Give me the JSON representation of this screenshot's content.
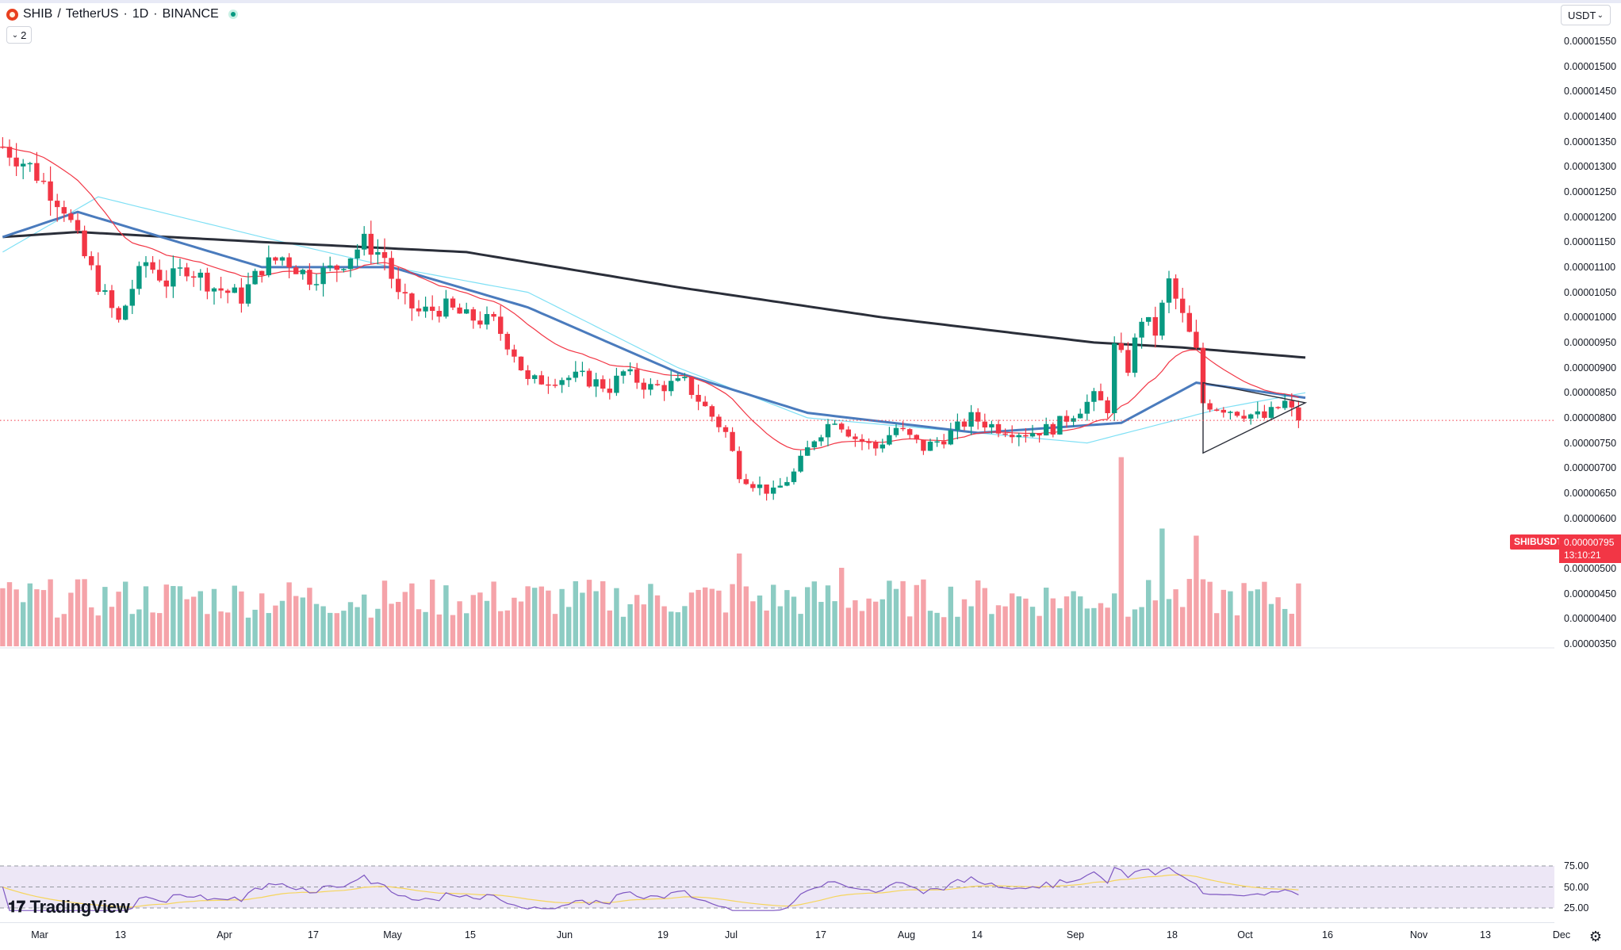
{
  "header": {
    "symbol": "SHIB",
    "separator": "/",
    "quote": "TetherUS",
    "interval": "1D",
    "exchange": "BINANCE",
    "meta_sep": "·",
    "indicators_count": "2",
    "currency": "USDT"
  },
  "price_tag": {
    "symbol": "SHIBUSDT",
    "last": "0.00000795",
    "countdown": "13:10:21"
  },
  "brand": "TradingView",
  "colors": {
    "up": "#089981",
    "down": "#f23645",
    "volume_up": "#8cccc3",
    "volume_down": "#f5a3a9",
    "ema20": "#f23645",
    "sma50": "#4a7bbd",
    "sma50b": "#7fe0f5",
    "sma200": "#2a2e39",
    "rsi": "#7e57c2",
    "rsi_ma": "#f6d55c",
    "rsi_band": "#ede7f6"
  },
  "chart_data": {
    "type": "candlestick",
    "ylim": [
      3.5e-06,
      1.575e-05
    ],
    "y_ticks": [
      "0.00000350",
      "0.00000400",
      "0.00000450",
      "0.00000500",
      "0.00000550",
      "0.00000600",
      "0.00000650",
      "0.00000700",
      "0.00000750",
      "0.00000800",
      "0.00000850",
      "0.00000900",
      "0.00000950",
      "0.00001000",
      "0.00001050",
      "0.00001100",
      "0.00001150",
      "0.00001200",
      "0.00001250",
      "0.00001300",
      "0.00001350",
      "0.00001400",
      "0.00001450",
      "0.00001500",
      "0.00001550"
    ],
    "x_ticks": [
      "Mar",
      "13",
      "Apr",
      "17",
      "May",
      "15",
      "Jun",
      "19",
      "Jul",
      "17",
      "Aug",
      "14",
      "Sep",
      "18",
      "Oct",
      "16",
      "Nov",
      "13",
      "Dec"
    ],
    "close_anchors": [
      [
        "2023-02-22",
        1.34e-05
      ],
      [
        "2023-02-26",
        1.3e-05
      ],
      [
        "2023-03-03",
        1.22e-05
      ],
      [
        "2023-03-06",
        1.12e-05
      ],
      [
        "2023-03-09",
        1.04e-05
      ],
      [
        "2023-03-11",
        9.9e-06
      ],
      [
        "2023-03-13",
        1.06e-05
      ],
      [
        "2023-03-15",
        1.11e-05
      ],
      [
        "2023-03-18",
        1.07e-05
      ],
      [
        "2023-03-21",
        1.1e-05
      ],
      [
        "2023-03-25",
        1.06e-05
      ],
      [
        "2023-03-29",
        1.04e-05
      ],
      [
        "2023-04-01",
        1.1e-05
      ],
      [
        "2023-04-04",
        1.12e-05
      ],
      [
        "2023-04-08",
        1.08e-05
      ],
      [
        "2023-04-12",
        1.1e-05
      ],
      [
        "2023-04-16",
        1.15e-05
      ],
      [
        "2023-04-19",
        1.12e-05
      ],
      [
        "2023-04-21",
        1.04e-05
      ],
      [
        "2023-04-24",
        1.01e-05
      ],
      [
        "2023-04-28",
        1.02e-05
      ],
      [
        "2023-05-01",
        1e-05
      ],
      [
        "2023-05-05",
        9.9e-06
      ],
      [
        "2023-05-08",
        9.3e-06
      ],
      [
        "2023-05-10",
        8.7e-06
      ],
      [
        "2023-05-14",
        8.8e-06
      ],
      [
        "2023-05-18",
        8.8e-06
      ],
      [
        "2023-05-22",
        8.6e-06
      ],
      [
        "2023-05-24",
        8.9e-06
      ],
      [
        "2023-05-28",
        8.6e-06
      ],
      [
        "2023-06-02",
        8.7e-06
      ],
      [
        "2023-06-05",
        8.2e-06
      ],
      [
        "2023-06-08",
        7.7e-06
      ],
      [
        "2023-06-10",
        6.9e-06
      ],
      [
        "2023-06-12",
        6.7e-06
      ],
      [
        "2023-06-15",
        6.5e-06
      ],
      [
        "2023-06-18",
        6.9e-06
      ],
      [
        "2023-06-21",
        7.6e-06
      ],
      [
        "2023-06-24",
        8e-06
      ],
      [
        "2023-06-27",
        7.6e-06
      ],
      [
        "2023-06-30",
        7.4e-06
      ],
      [
        "2023-07-03",
        7.8e-06
      ],
      [
        "2023-07-07",
        7.4e-06
      ],
      [
        "2023-07-10",
        7.6e-06
      ],
      [
        "2023-07-14",
        8e-06
      ],
      [
        "2023-07-18",
        7.8e-06
      ],
      [
        "2023-07-22",
        7.7e-06
      ],
      [
        "2023-07-26",
        7.8e-06
      ],
      [
        "2023-07-29",
        8.1e-06
      ],
      [
        "2023-08-01",
        8.4e-06
      ],
      [
        "2023-08-03",
        8.2e-06
      ],
      [
        "2023-08-04",
        9.4e-06
      ],
      [
        "2023-08-06",
        9e-06
      ],
      [
        "2023-08-08",
        1e-05
      ],
      [
        "2023-08-10",
        9.7e-06
      ],
      [
        "2023-08-12",
        1.07e-05
      ],
      [
        "2023-08-14",
        1e-05
      ],
      [
        "2023-08-16",
        9.3e-06
      ],
      [
        "2023-08-17",
        8.3e-06
      ],
      [
        "2023-08-20",
        8.2e-06
      ],
      [
        "2023-08-23",
        8.1e-06
      ],
      [
        "2023-08-26",
        8e-06
      ],
      [
        "2023-08-29",
        8.3e-06
      ],
      [
        "2023-08-31",
        7.95e-06
      ]
    ],
    "sma200_anchors": [
      [
        "2023-02-22",
        1.16e-05
      ],
      [
        "2023-03-05",
        1.17e-05
      ],
      [
        "2023-04-01",
        1.15e-05
      ],
      [
        "2023-05-01",
        1.13e-05
      ],
      [
        "2023-06-01",
        1.06e-05
      ],
      [
        "2023-07-01",
        1e-05
      ],
      [
        "2023-08-01",
        9.5e-06
      ],
      [
        "2023-08-14",
        9.4e-06
      ],
      [
        "2023-09-01",
        9.2e-06
      ]
    ],
    "sma50_anchors": [
      [
        "2023-02-22",
        1.16e-05
      ],
      [
        "2023-03-05",
        1.21e-05
      ],
      [
        "2023-04-01",
        1.1e-05
      ],
      [
        "2023-04-20",
        1.1e-05
      ],
      [
        "2023-05-10",
        1.02e-05
      ],
      [
        "2023-06-01",
        8.9e-06
      ],
      [
        "2023-06-20",
        8.1e-06
      ],
      [
        "2023-07-15",
        7.7e-06
      ],
      [
        "2023-08-05",
        7.9e-06
      ],
      [
        "2023-08-16",
        8.7e-06
      ],
      [
        "2023-09-01",
        8.4e-06
      ]
    ],
    "sma50b_anchors": [
      [
        "2023-02-22",
        1.13e-05
      ],
      [
        "2023-03-08",
        1.24e-05
      ],
      [
        "2023-04-01",
        1.16e-05
      ],
      [
        "2023-04-20",
        1.1e-05
      ],
      [
        "2023-05-10",
        1.05e-05
      ],
      [
        "2023-06-01",
        9e-06
      ],
      [
        "2023-06-20",
        8e-06
      ],
      [
        "2023-07-15",
        7.7e-06
      ],
      [
        "2023-07-31",
        7.5e-06
      ],
      [
        "2023-08-20",
        8.2e-06
      ],
      [
        "2023-09-01",
        8.5e-06
      ]
    ],
    "triangle_pattern": {
      "p1": [
        "2023-08-17",
        7.3e-06
      ],
      "p2": [
        "2023-09-01",
        8.3e-06
      ],
      "p3": [
        "2023-08-17",
        8.7e-06
      ]
    },
    "rsi": {
      "levels": [
        25,
        50,
        75
      ],
      "labels": [
        "25.00",
        "50.00",
        "75.00"
      ],
      "current": 42
    }
  }
}
